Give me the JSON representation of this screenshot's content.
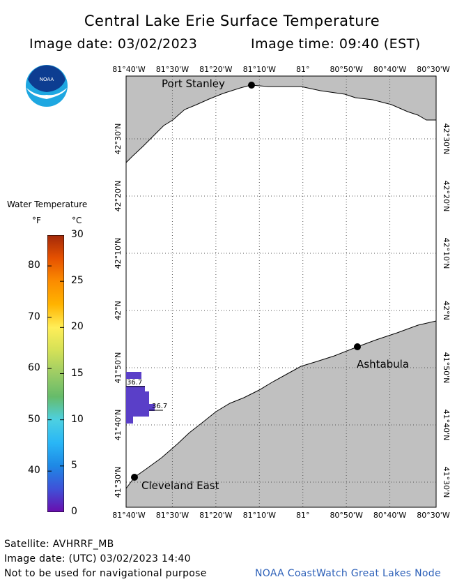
{
  "header": {
    "title": "Central Lake Erie Surface Temperature",
    "image_date": "Image date: 03/02/2023",
    "image_time": "Image time: 09:40 (EST)"
  },
  "logo": {
    "text": "NOAA",
    "icon": "noaa-logo-icon"
  },
  "legend": {
    "title": "Water Temperature",
    "unit_f": "°F",
    "unit_c": "°C",
    "f_ticks": [
      "80",
      "70",
      "60",
      "50",
      "40"
    ],
    "c_ticks": [
      "30",
      "25",
      "20",
      "15",
      "10",
      "5",
      "0"
    ],
    "c_range": [
      0,
      30
    ],
    "colors": [
      "#6a0dad",
      "#3f51d8",
      "#1e88e5",
      "#29b6f6",
      "#4dd0e1",
      "#66bb6a",
      "#9ccc65",
      "#d4e157",
      "#ffee58",
      "#ffb300",
      "#fb8c00",
      "#e65100",
      "#a3290a"
    ]
  },
  "map": {
    "top_lon_labels": [
      "81°40'W",
      "81°30'W",
      "81°20'W",
      "81°10'W",
      "81°",
      "80°50'W",
      "80°40'W",
      "80°30'W"
    ],
    "bottom_lon_labels": [
      "81°40'W",
      "81°30'W",
      "81°20'W",
      "81°10'W",
      "81°",
      "80°50'W",
      "80°40'W",
      "80°30'W"
    ],
    "lat_labels": [
      "42°30'N",
      "42°20'N",
      "42°10'N",
      "42°N",
      "41°50'N",
      "41°40'N",
      "41°30'N"
    ],
    "places": {
      "port_stanley": "Port Stanley",
      "ashtabula": "Ashtabula",
      "cleveland_east": "Cleveland East"
    },
    "temp_labels": [
      "36.7",
      "36.7"
    ],
    "land_color": "#c0c0c0",
    "water_color": "#ffffff",
    "data_color": "#5a3fc8"
  },
  "footer": {
    "satellite": "Satellite: AVHRRF_MB",
    "utc_date": "Image date: (UTC) 03/02/2023  14:40",
    "warning": "Not to be used for navigational purpose",
    "credit": "NOAA CoastWatch Great Lakes Node"
  }
}
